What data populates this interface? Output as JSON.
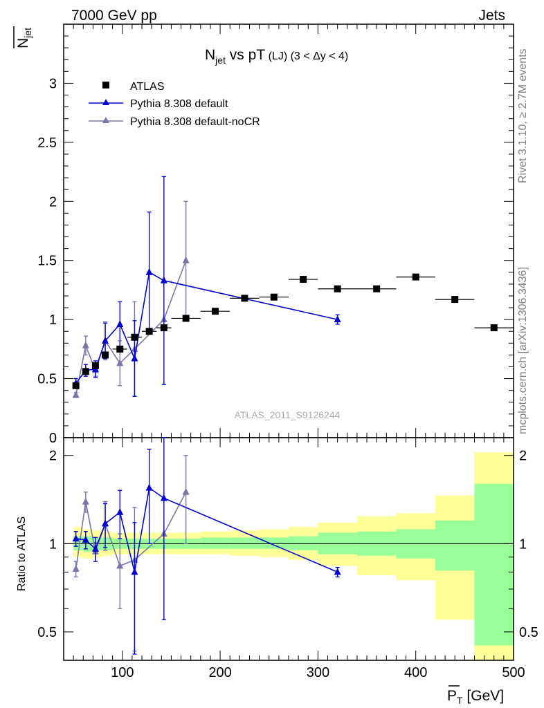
{
  "header": {
    "left": "7000 GeV pp",
    "right": "Jets"
  },
  "side_labels": {
    "rivet": "Rivet 3.1.10, ≥ 2.7M events",
    "mcplots": "mcplots.cern.ch [arXiv:1306.3436]"
  },
  "analysis_id": "ATLAS_2011_S9126244",
  "colors": {
    "data": "#000000",
    "default": "#0000cc",
    "nocr": "#7777aa",
    "band_inner": "#99ff99",
    "band_outer": "#ffff99"
  },
  "chart_data": [
    {
      "type": "scatter",
      "panel": "main",
      "title": "N_jet vs pT (LJ) (3 < Δy < 4)",
      "title_parts": {
        "n": "N",
        "jet": "jet",
        "rest": " vs pT",
        "small": " (LJ) (3 < Δy < 4)"
      },
      "ylabel": "N̅_jet",
      "ylabel_parts": {
        "n": "N",
        "jet": "jet"
      },
      "xlabel": "P̅_T [GeV]",
      "xlabel_parts": {
        "p": "P",
        "t": "T",
        "unit": " [GeV]"
      },
      "xlim": [
        40,
        500
      ],
      "ylim": [
        0,
        3.5
      ],
      "yticks": [
        "0",
        "0.5",
        "1",
        "1.5",
        "2",
        "2.5",
        "3"
      ],
      "xticks": [
        "100",
        "200",
        "300",
        "400",
        "500"
      ],
      "legend_position": "top-left",
      "series": [
        {
          "name": "ATLAS",
          "marker": "square",
          "x": [
            52.5,
            62.5,
            72.5,
            82.5,
            97.5,
            112.5,
            127.5,
            142.5,
            165,
            195,
            225,
            255,
            285,
            320,
            360,
            400,
            440,
            480
          ],
          "y": [
            0.44,
            0.56,
            0.61,
            0.7,
            0.75,
            0.85,
            0.9,
            0.93,
            1.01,
            1.07,
            1.18,
            1.19,
            1.34,
            1.26,
            1.26,
            1.36,
            1.17,
            0.93
          ],
          "xerr": [
            2.5,
            2.5,
            2.5,
            2.5,
            7.5,
            7.5,
            7.5,
            7.5,
            15,
            15,
            15,
            15,
            15,
            20,
            20,
            20,
            20,
            20
          ],
          "yerr": [
            0.02,
            0.02,
            0.02,
            0.02,
            0.02,
            0.02,
            0.02,
            0.02,
            0.02,
            0.02,
            0.02,
            0.02,
            0.02,
            0.02,
            0.02,
            0.02,
            0.02,
            0.02
          ]
        },
        {
          "name": "Pythia 8.308 default",
          "marker": "triangle",
          "x": [
            52.5,
            62.5,
            72.5,
            82.5,
            97.5,
            112.5,
            127.5,
            142.5,
            320
          ],
          "y": [
            0.46,
            0.57,
            0.58,
            0.82,
            0.96,
            0.67,
            1.4,
            1.33,
            1.0
          ],
          "yerr": [
            0.04,
            0.05,
            0.07,
            0.15,
            0.19,
            0.32,
            0.51,
            0.88,
            0.04
          ]
        },
        {
          "name": "Pythia 8.308 default-noCR",
          "marker": "triangle",
          "x": [
            52.5,
            62.5,
            72.5,
            82.5,
            97.5,
            112.5,
            142.5,
            165
          ],
          "y": [
            0.36,
            0.78,
            0.57,
            0.82,
            0.63,
            0.75,
            1.0,
            1.5
          ],
          "yerr": [
            0.02,
            0.08,
            0.05,
            0.16,
            0.19,
            0.4,
            0.0,
            0.5
          ]
        }
      ]
    },
    {
      "type": "scatter",
      "panel": "ratio",
      "ylabel": "Ratio to ATLAS",
      "xlim": [
        40,
        500
      ],
      "ylim": [
        0.4,
        2.3
      ],
      "log_y": true,
      "yticks": [
        "0.5",
        "1",
        "2"
      ],
      "bands": {
        "edges": [
          50,
          60,
          70,
          80,
          90,
          110,
          140,
          180,
          210,
          240,
          270,
          300,
          340,
          380,
          420,
          460,
          500
        ],
        "inner_low": [
          0.95,
          0.94,
          0.95,
          0.95,
          0.96,
          0.96,
          0.96,
          0.96,
          0.96,
          0.96,
          0.95,
          0.92,
          0.91,
          0.89,
          0.81,
          0.45
        ],
        "inner_high": [
          1.06,
          1.06,
          1.05,
          1.05,
          1.04,
          1.04,
          1.04,
          1.05,
          1.05,
          1.05,
          1.06,
          1.09,
          1.1,
          1.12,
          1.2,
          1.6
        ],
        "outer_low": [
          0.9,
          0.89,
          0.9,
          0.91,
          0.92,
          0.92,
          0.92,
          0.92,
          0.91,
          0.9,
          0.88,
          0.84,
          0.78,
          0.75,
          0.55,
          0.37
        ],
        "outer_high": [
          1.14,
          1.12,
          1.11,
          1.1,
          1.09,
          1.09,
          1.09,
          1.1,
          1.11,
          1.12,
          1.14,
          1.18,
          1.24,
          1.27,
          1.46,
          2.05
        ]
      },
      "series": [
        {
          "name": "Pythia 8.308 default",
          "x": [
            52.5,
            62.5,
            72.5,
            82.5,
            97.5,
            112.5,
            127.5,
            142.5,
            320
          ],
          "y": [
            1.04,
            1.03,
            0.96,
            1.17,
            1.28,
            0.8,
            1.55,
            1.43,
            0.8
          ],
          "yerr": [
            0.06,
            0.07,
            0.09,
            0.2,
            0.24,
            0.38,
            0.55,
            0.88,
            0.03
          ]
        },
        {
          "name": "Pythia 8.308 default-noCR",
          "x": [
            52.5,
            62.5,
            72.5,
            82.5,
            97.5,
            112.5,
            142.5,
            165
          ],
          "y": [
            0.82,
            1.39,
            0.94,
            1.17,
            0.84,
            0.88,
            1.08,
            1.5
          ],
          "yerr": [
            0.05,
            0.11,
            0.07,
            0.22,
            0.24,
            0.45,
            0.0,
            0.5
          ]
        }
      ]
    }
  ]
}
